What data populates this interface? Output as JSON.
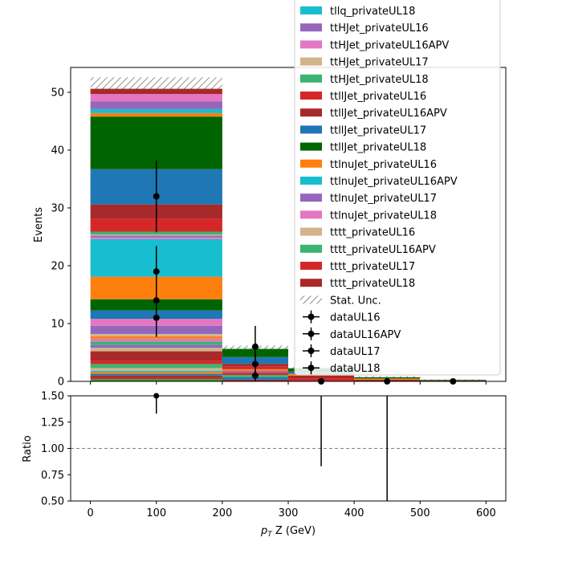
{
  "chart_data": [
    {
      "type": "bar",
      "subtype": "stacked-histogram",
      "title": "",
      "xlabel": "",
      "ylabel": "Events",
      "xlim": [
        -30,
        630
      ],
      "ylim": [
        0,
        54.3
      ],
      "bins": [
        [
          0,
          200
        ],
        [
          200,
          300
        ],
        [
          300,
          400
        ],
        [
          400,
          500
        ],
        [
          500,
          600
        ]
      ],
      "stack_totals": [
        51.6,
        5.9,
        2.4,
        0.8,
        0.3
      ],
      "stat_unc": [
        1.0,
        0.3,
        0.15,
        0.1,
        0.05
      ],
      "bin0_stack": [
        {
          "color": "#2ca02c",
          "value": 0.4
        },
        {
          "color": "#d62728",
          "value": 0.3
        },
        {
          "color": "#a8292a",
          "value": 0.3
        },
        {
          "color": "#1f77b4",
          "value": 0.3
        },
        {
          "color": "#ff7f0e",
          "value": 0.3
        },
        {
          "color": "#17becf",
          "value": 0.2
        },
        {
          "color": "#d2b48c",
          "value": 0.5
        },
        {
          "color": "#3cb371",
          "value": 0.7
        },
        {
          "color": "#d62728",
          "value": 0.6
        },
        {
          "color": "#a8292a",
          "value": 1.6
        },
        {
          "color": "#d2b48c",
          "value": 0.6
        },
        {
          "color": "#9467bd",
          "value": 0.5
        },
        {
          "color": "#3cb371",
          "value": 0.6
        },
        {
          "color": "#e377c2",
          "value": 0.5
        },
        {
          "color": "#ff7f0e",
          "value": 0.4
        },
        {
          "color": "#d2b48c",
          "value": 0.4
        },
        {
          "color": "#9467bd",
          "value": 1.4
        },
        {
          "color": "#e377c2",
          "value": 1.2
        },
        {
          "color": "#1f77b4",
          "value": 1.5
        },
        {
          "color": "#006400",
          "value": 1.9
        },
        {
          "color": "#ff7f0e",
          "value": 3.9
        },
        {
          "color": "#17becf",
          "value": 6.5
        },
        {
          "color": "#e377c2",
          "value": 0.3
        },
        {
          "color": "#9467bd",
          "value": 0.3
        },
        {
          "color": "#d2b48c",
          "value": 0.2
        },
        {
          "color": "#3cb371",
          "value": 0.5
        },
        {
          "color": "#d62728",
          "value": 2.2
        },
        {
          "color": "#a8292a",
          "value": 2.5
        },
        {
          "color": "#1f77b4",
          "value": 6.1
        },
        {
          "color": "#006400",
          "value": 9.1
        },
        {
          "color": "#ff7f0e",
          "value": 0.6
        },
        {
          "color": "#17becf",
          "value": 0.7
        },
        {
          "color": "#9467bd",
          "value": 1.3
        },
        {
          "color": "#e377c2",
          "value": 1.3
        },
        {
          "color": "#a8292a",
          "value": 1.0
        }
      ],
      "bin1_stack": [
        {
          "color": "#a8292a",
          "value": 0.3
        },
        {
          "color": "#1f77b4",
          "value": 0.4
        },
        {
          "color": "#3cb371",
          "value": 0.4
        },
        {
          "color": "#d62728",
          "value": 0.4
        },
        {
          "color": "#9467bd",
          "value": 0.3
        },
        {
          "color": "#ff7f0e",
          "value": 0.3
        },
        {
          "color": "#d62728",
          "value": 0.5
        },
        {
          "color": "#a8292a",
          "value": 0.4
        },
        {
          "color": "#1f77b4",
          "value": 1.2
        },
        {
          "color": "#006400",
          "value": 1.7
        }
      ],
      "bin2_stack": [
        {
          "color": "#d62728",
          "value": 0.5
        },
        {
          "color": "#a8292a",
          "value": 0.5
        },
        {
          "color": "#ff7f0e",
          "value": 0.3
        },
        {
          "color": "#1f77b4",
          "value": 0.4
        },
        {
          "color": "#006400",
          "value": 0.7
        }
      ],
      "bin3_stack": [
        {
          "color": "#a8292a",
          "value": 0.3
        },
        {
          "color": "#ff7f0e",
          "value": 0.2
        },
        {
          "color": "#006400",
          "value": 0.3
        }
      ],
      "bin4_stack": [
        {
          "color": "#a8292a",
          "value": 0.15
        },
        {
          "color": "#006400",
          "value": 0.15
        }
      ],
      "data_points": [
        {
          "x": 100,
          "y": 32.0,
          "err": 6.2
        },
        {
          "x": 100,
          "y": 19.0,
          "err": 4.4
        },
        {
          "x": 100,
          "y": 14.0,
          "err": 3.8
        },
        {
          "x": 100,
          "y": 11.0,
          "err": 3.3
        },
        {
          "x": 250,
          "y": 6.0,
          "err": 3.6
        },
        {
          "x": 250,
          "y": 3.0,
          "err": 1.7
        },
        {
          "x": 250,
          "y": 1.0,
          "err": 1.0
        },
        {
          "x": 350,
          "y": 0.0,
          "err": 0.0
        },
        {
          "x": 450,
          "y": 0.0,
          "err": 0.0
        },
        {
          "x": 550,
          "y": 0.0,
          "err": 0.0
        }
      ],
      "yticks": [
        0,
        10,
        20,
        30,
        40,
        50
      ],
      "legend_placement": "upper-right",
      "legend": [
        {
          "label": "tllq_privateUL18",
          "color": "#17becf",
          "kind": "patch"
        },
        {
          "label": "ttHJet_privateUL16",
          "color": "#9467bd",
          "kind": "patch"
        },
        {
          "label": "ttHJet_privateUL16APV",
          "color": "#e377c2",
          "kind": "patch"
        },
        {
          "label": "ttHJet_privateUL17",
          "color": "#d2b48c",
          "kind": "patch"
        },
        {
          "label": "ttHJet_privateUL18",
          "color": "#3cb371",
          "kind": "patch"
        },
        {
          "label": "ttllJet_privateUL16",
          "color": "#d62728",
          "kind": "patch"
        },
        {
          "label": "ttllJet_privateUL16APV",
          "color": "#a8292a",
          "kind": "patch"
        },
        {
          "label": "ttllJet_privateUL17",
          "color": "#1f77b4",
          "kind": "patch"
        },
        {
          "label": "ttllJet_privateUL18",
          "color": "#006400",
          "kind": "patch"
        },
        {
          "label": "ttlnuJet_privateUL16",
          "color": "#ff7f0e",
          "kind": "patch"
        },
        {
          "label": "ttlnuJet_privateUL16APV",
          "color": "#17becf",
          "kind": "patch"
        },
        {
          "label": "ttlnuJet_privateUL17",
          "color": "#9467bd",
          "kind": "patch"
        },
        {
          "label": "ttlnuJet_privateUL18",
          "color": "#e377c2",
          "kind": "patch"
        },
        {
          "label": "tttt_privateUL16",
          "color": "#d2b48c",
          "kind": "patch"
        },
        {
          "label": "tttt_privateUL16APV",
          "color": "#3cb371",
          "kind": "patch"
        },
        {
          "label": "tttt_privateUL17",
          "color": "#d62728",
          "kind": "patch"
        },
        {
          "label": "tttt_privateUL18",
          "color": "#a8292a",
          "kind": "patch"
        },
        {
          "label": "Stat. Unc.",
          "color": "#888888",
          "kind": "hatch"
        },
        {
          "label": "dataUL16",
          "color": "#000000",
          "kind": "marker"
        },
        {
          "label": "dataUL16APV",
          "color": "#000000",
          "kind": "marker"
        },
        {
          "label": "dataUL17",
          "color": "#000000",
          "kind": "marker"
        },
        {
          "label": "dataUL18",
          "color": "#000000",
          "kind": "marker"
        }
      ]
    },
    {
      "type": "scatter",
      "subtype": "ratio",
      "title": "",
      "xlabel": "p_T Z (GeV)",
      "ylabel": "Ratio",
      "xlim": [
        -30,
        630
      ],
      "ylim": [
        0.5,
        1.5
      ],
      "xticks": [
        0,
        100,
        200,
        300,
        400,
        500,
        600
      ],
      "yticks": [
        "0.50",
        "0.75",
        "1.00",
        "1.25",
        "1.50"
      ],
      "reference_line": 1.0,
      "points": [
        {
          "x": 100,
          "y": 1.5,
          "err_low": 0.17,
          "err_high": 0.2
        },
        {
          "x": 350,
          "y": 1.6,
          "err_low": 0.77,
          "err_high": 0.2
        },
        {
          "x": 450,
          "y": 1.6,
          "err_low": 1.2,
          "err_high": 0.2
        }
      ]
    }
  ],
  "xlabel_parts": {
    "main": "p",
    "sub": "T",
    "rest": " Z (GeV)"
  }
}
